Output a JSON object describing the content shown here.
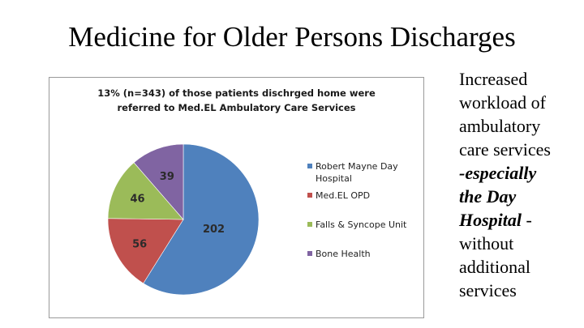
{
  "slide": {
    "title": "Medicine for Older Persons Discharges",
    "side_text_lines": [
      {
        "text": "Increased",
        "emphasis": false
      },
      {
        "text": "workload of",
        "emphasis": false
      },
      {
        "text": "ambulatory",
        "emphasis": false
      },
      {
        "text": "care services",
        "emphasis": false
      },
      {
        "text": "-especially",
        "emphasis": true
      },
      {
        "text": "the Day",
        "emphasis": true
      },
      {
        "text": "Hospital -",
        "emphasis": true,
        "tail_plain": true
      },
      {
        "text": "without",
        "emphasis": false
      },
      {
        "text": "additional",
        "emphasis": false
      },
      {
        "text": "services",
        "emphasis": false
      }
    ]
  },
  "chart_data": {
    "type": "pie",
    "title_lines": [
      "13% (n=343) of those patients dischrged home were",
      "referred to Med.EL Ambulatory Care Services"
    ],
    "categories": [
      "Robert Mayne Day Hospital",
      "Med.EL OPD",
      "Falls & Syncope Unit",
      "Bone Health"
    ],
    "legend_labels": [
      [
        "Robert Mayne Day",
        "Hospital"
      ],
      [
        "Med.EL OPD"
      ],
      [
        "Falls & Syncope Unit"
      ],
      [
        "Bone Health"
      ]
    ],
    "values": [
      202,
      56,
      46,
      39
    ],
    "colors": [
      "#4f81bd",
      "#c0504d",
      "#9bbb59",
      "#8064a2"
    ],
    "start_angle_deg": 0,
    "direction": "clockwise",
    "legend_position": "right",
    "data_labels": [
      "202",
      "56",
      "46",
      "39"
    ]
  }
}
